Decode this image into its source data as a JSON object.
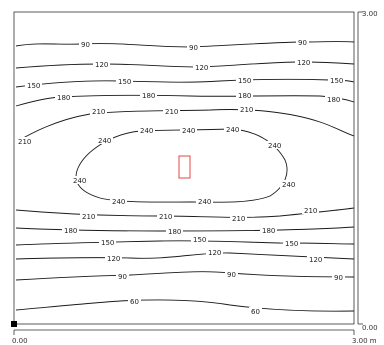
{
  "axis": {
    "x_start": "0.00",
    "x_end": "3.00 m",
    "y_bottom": "0.00",
    "y_top": "3.00"
  },
  "colors": {
    "contour": "#1a1a1a",
    "luminaire": "#e0473f",
    "frame": "#333333"
  },
  "contours": [
    {
      "value": "90",
      "labels": [
        "90",
        "90",
        "90"
      ]
    },
    {
      "value": "120",
      "labels": [
        "120",
        "120",
        "120"
      ]
    },
    {
      "value": "150",
      "labels": [
        "150",
        "150",
        "150",
        "150"
      ]
    },
    {
      "value": "180",
      "labels": [
        "180",
        "180",
        "180",
        "180"
      ]
    },
    {
      "value": "210",
      "labels": [
        "210",
        "210",
        "210",
        "210"
      ]
    },
    {
      "value": "240",
      "labels": [
        "240",
        "240",
        "240",
        "240",
        "240",
        "240",
        "240",
        "240",
        "240"
      ]
    },
    {
      "value": "210",
      "labels": [
        "210",
        "210",
        "210",
        "210"
      ]
    },
    {
      "value": "180",
      "labels": [
        "180",
        "180",
        "180"
      ]
    },
    {
      "value": "150",
      "labels": [
        "150",
        "150",
        "150"
      ]
    },
    {
      "value": "120",
      "labels": [
        "120",
        "120",
        "120"
      ]
    },
    {
      "value": "90",
      "labels": [
        "90",
        "90",
        "90"
      ]
    },
    {
      "value": "60",
      "labels": [
        "60",
        "60"
      ]
    }
  ]
}
